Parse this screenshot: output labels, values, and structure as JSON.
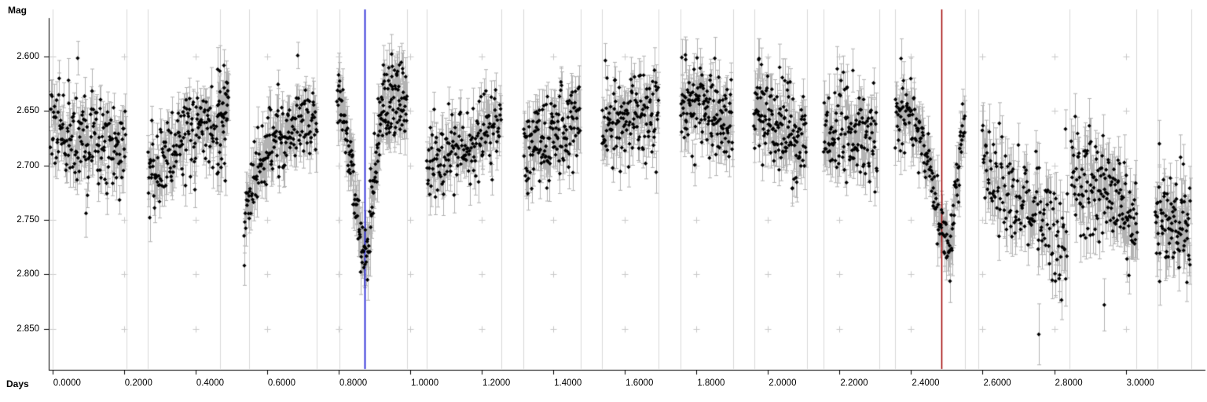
{
  "chart_data": {
    "type": "scatter",
    "title": "",
    "ylabel": "Mag",
    "xlabel": "Days",
    "y_axis_inverted": true,
    "xlim": [
      -0.01,
      3.223
    ],
    "ylim": [
      2.557,
      2.888
    ],
    "grid": "vertical session lines; plus markers at every x-tick/y-tick intersection; no horizontal gridlines",
    "legend_position": "none",
    "x_ticks": [
      {
        "v": 0.0,
        "label": "0.0000"
      },
      {
        "v": 0.2,
        "label": "0.2000"
      },
      {
        "v": 0.4,
        "label": "0.4000"
      },
      {
        "v": 0.6,
        "label": "0.6000"
      },
      {
        "v": 0.8,
        "label": "0.8000"
      },
      {
        "v": 1.0,
        "label": "1.0000"
      },
      {
        "v": 1.2,
        "label": "1.2000"
      },
      {
        "v": 1.4,
        "label": "1.4000"
      },
      {
        "v": 1.6,
        "label": "1.6000"
      },
      {
        "v": 1.8,
        "label": "1.8000"
      },
      {
        "v": 2.0,
        "label": "2.0000"
      },
      {
        "v": 2.2,
        "label": "2.2000"
      },
      {
        "v": 2.4,
        "label": "2.4000"
      },
      {
        "v": 2.6,
        "label": "2.6000"
      },
      {
        "v": 2.8,
        "label": "2.8000"
      },
      {
        "v": 3.0,
        "label": "3.0000"
      }
    ],
    "y_ticks": [
      {
        "v": 2.6,
        "label": "2.600"
      },
      {
        "v": 2.65,
        "label": "2.650"
      },
      {
        "v": 2.7,
        "label": "2.700"
      },
      {
        "v": 2.75,
        "label": "2.750"
      },
      {
        "v": 2.8,
        "label": "2.800"
      },
      {
        "v": 2.85,
        "label": "2.850"
      }
    ],
    "marker_lines": [
      {
        "name": "blue-cursor",
        "day": 0.873,
        "color": "#0000d0"
      },
      {
        "name": "red-cursor",
        "day": 2.484,
        "color": "#a00000"
      }
    ],
    "session_lines_days": [
      0.0,
      0.207,
      0.2665,
      0.4686,
      0.5492,
      0.7394,
      0.8014,
      0.9907,
      1.0469,
      1.2556,
      1.3164,
      1.4761,
      1.5361,
      1.695,
      1.756,
      1.9022,
      1.9622,
      2.1094,
      2.1555,
      2.3115,
      2.3561,
      2.5503,
      2.5883,
      2.843,
      3.0298,
      3.0885,
      3.1821
    ],
    "series": [
      {
        "name": "magnitude-with-error-bars",
        "marker": "diamond",
        "marker_color": "#000000",
        "error_bar_color": "#b3b3b3",
        "segments": [
          {
            "t0": -0.006,
            "t1": 0.205,
            "n": 170,
            "sigma": 0.02,
            "err": 0.016,
            "profile": [
              [
                -0.006,
                2.67
              ],
              [
                0.06,
                2.676
              ],
              [
                0.13,
                2.678
              ],
              [
                0.205,
                2.688
              ]
            ]
          },
          {
            "t0": 0.267,
            "t1": 0.453,
            "n": 150,
            "sigma": 0.017,
            "err": 0.016,
            "profile": [
              [
                0.267,
                2.703
              ],
              [
                0.32,
                2.688
              ],
              [
                0.4,
                2.667
              ],
              [
                0.453,
                2.662
              ]
            ]
          },
          {
            "t0": 0.458,
            "t1": 0.492,
            "n": 45,
            "sigma": 0.024,
            "err": 0.018,
            "profile": [
              [
                0.458,
                2.665
              ],
              [
                0.492,
                2.66
              ]
            ]
          },
          {
            "t0": 0.535,
            "t1": 0.74,
            "n": 165,
            "sigma": 0.016,
            "err": 0.016,
            "profile": [
              [
                0.535,
                2.758
              ],
              [
                0.548,
                2.735
              ],
              [
                0.565,
                2.708
              ],
              [
                0.6,
                2.684
              ],
              [
                0.65,
                2.67
              ],
              [
                0.74,
                2.653
              ]
            ]
          },
          {
            "t0": 0.795,
            "t1": 0.885,
            "n": 85,
            "sigma": 0.013,
            "err": 0.018,
            "profile": [
              [
                0.795,
                2.638
              ],
              [
                0.815,
                2.655
              ],
              [
                0.835,
                2.695
              ],
              [
                0.852,
                2.745
              ],
              [
                0.865,
                2.772
              ],
              [
                0.873,
                2.78
              ],
              [
                0.885,
                2.768
              ]
            ]
          },
          {
            "t0": 0.886,
            "t1": 0.991,
            "n": 115,
            "sigma": 0.019,
            "err": 0.018,
            "profile": [
              [
                0.886,
                2.76
              ],
              [
                0.898,
                2.715
              ],
              [
                0.912,
                2.668
              ],
              [
                0.93,
                2.645
              ],
              [
                0.955,
                2.64
              ],
              [
                0.991,
                2.652
              ]
            ]
          },
          {
            "t0": 1.046,
            "t1": 1.255,
            "n": 160,
            "sigma": 0.018,
            "err": 0.016,
            "profile": [
              [
                1.046,
                2.698
              ],
              [
                1.1,
                2.692
              ],
              [
                1.18,
                2.675
              ],
              [
                1.255,
                2.662
              ]
            ]
          },
          {
            "t0": 1.317,
            "t1": 1.475,
            "n": 150,
            "sigma": 0.019,
            "err": 0.016,
            "profile": [
              [
                1.317,
                2.688
              ],
              [
                1.4,
                2.666
              ],
              [
                1.475,
                2.654
              ]
            ]
          },
          {
            "t0": 1.536,
            "t1": 1.695,
            "n": 140,
            "sigma": 0.018,
            "err": 0.016,
            "profile": [
              [
                1.536,
                2.668
              ],
              [
                1.62,
                2.653
              ],
              [
                1.695,
                2.65
              ]
            ]
          },
          {
            "t0": 1.756,
            "t1": 1.901,
            "n": 140,
            "sigma": 0.02,
            "err": 0.016,
            "profile": [
              [
                1.756,
                2.645
              ],
              [
                1.83,
                2.65
              ],
              [
                1.901,
                2.663
              ]
            ]
          },
          {
            "t0": 1.96,
            "t1": 2.107,
            "n": 140,
            "sigma": 0.022,
            "err": 0.017,
            "profile": [
              [
                1.96,
                2.643
              ],
              [
                2.03,
                2.66
              ],
              [
                2.107,
                2.683
              ]
            ]
          },
          {
            "t0": 2.155,
            "t1": 2.305,
            "n": 125,
            "sigma": 0.021,
            "err": 0.017,
            "profile": [
              [
                2.155,
                2.655
              ],
              [
                2.24,
                2.668
              ],
              [
                2.305,
                2.686
              ]
            ]
          },
          {
            "t0": 2.355,
            "t1": 2.503,
            "n": 115,
            "sigma": 0.014,
            "err": 0.017,
            "profile": [
              [
                2.355,
                2.648
              ],
              [
                2.4,
                2.655
              ],
              [
                2.433,
                2.675
              ],
              [
                2.458,
                2.71
              ],
              [
                2.48,
                2.752
              ],
              [
                2.503,
                2.776
              ]
            ]
          },
          {
            "t0": 2.503,
            "t1": 2.551,
            "n": 40,
            "sigma": 0.014,
            "err": 0.018,
            "profile": [
              [
                2.503,
                2.778
              ],
              [
                2.513,
                2.772
              ],
              [
                2.525,
                2.73
              ],
              [
                2.54,
                2.68
              ],
              [
                2.551,
                2.648
              ]
            ]
          },
          {
            "t0": 2.598,
            "t1": 2.838,
            "n": 155,
            "sigma": 0.024,
            "err": 0.02,
            "profile": [
              [
                2.598,
                2.7
              ],
              [
                2.66,
                2.728
              ],
              [
                2.75,
                2.748
              ],
              [
                2.838,
                2.768
              ]
            ]
          },
          {
            "t0": 2.847,
            "t1": 3.032,
            "n": 150,
            "sigma": 0.025,
            "err": 0.02,
            "profile": [
              [
                2.847,
                2.712
              ],
              [
                2.92,
                2.728
              ],
              [
                3.032,
                2.745
              ]
            ]
          },
          {
            "t0": 3.082,
            "t1": 3.181,
            "n": 90,
            "sigma": 0.022,
            "err": 0.019,
            "profile": [
              [
                3.082,
                2.753
              ],
              [
                3.13,
                2.75
              ],
              [
                3.181,
                2.76
              ]
            ]
          }
        ],
        "outliers": [
          {
            "t": 0.045,
            "mag": 2.622,
            "err": 0.02
          },
          {
            "t": 0.094,
            "mag": 2.744,
            "err": 0.022
          },
          {
            "t": 0.272,
            "mag": 2.748,
            "err": 0.022
          },
          {
            "t": 0.462,
            "mag": 2.612,
            "err": 0.02
          },
          {
            "t": 0.925,
            "mag": 2.608,
            "err": 0.018
          },
          {
            "t": 0.948,
            "mag": 2.598,
            "err": 0.018
          },
          {
            "t": 1.77,
            "mag": 2.603,
            "err": 0.018
          },
          {
            "t": 1.975,
            "mag": 2.602,
            "err": 0.018
          },
          {
            "t": 2.372,
            "mag": 2.602,
            "err": 0.018
          },
          {
            "t": 2.757,
            "mag": 2.855,
            "err": 0.028
          },
          {
            "t": 2.94,
            "mag": 2.828,
            "err": 0.024
          }
        ]
      }
    ],
    "seed": 1337
  },
  "colors": {
    "background": "#ffffff",
    "axis": "#000000",
    "text": "#000000",
    "session_line": "#d9d9d9",
    "plus_marker": "#c9c9c9",
    "error_bar": "#b3b3b3",
    "point": "#000000",
    "blue_cursor": "#0000d0",
    "red_cursor": "#a00000"
  }
}
